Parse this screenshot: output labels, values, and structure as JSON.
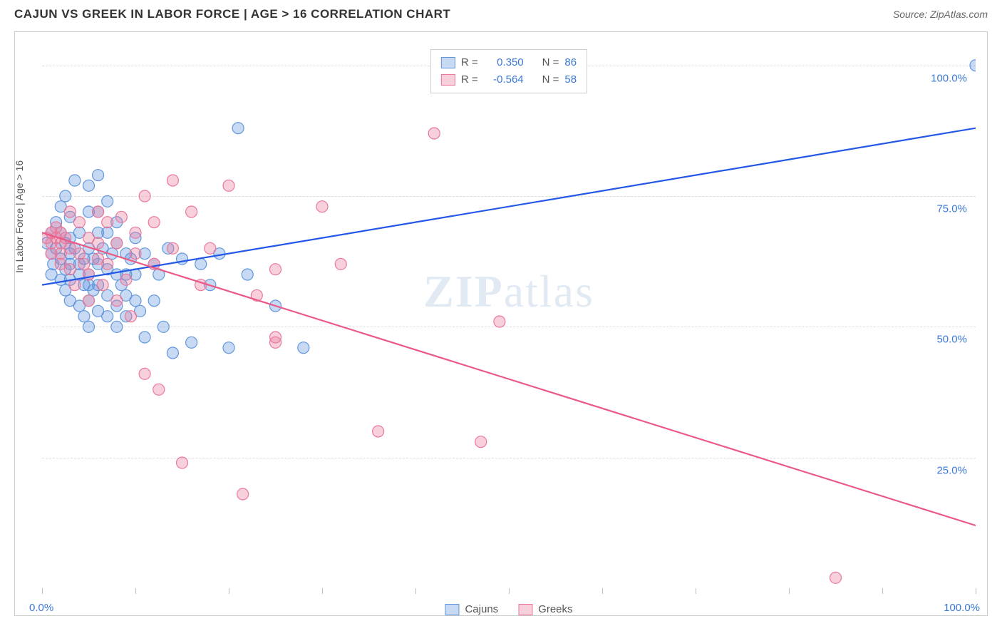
{
  "header": {
    "title": "CAJUN VS GREEK IN LABOR FORCE | AGE > 16 CORRELATION CHART",
    "source": "Source: ZipAtlas.com"
  },
  "chart": {
    "type": "scatter",
    "background_color": "#ffffff",
    "border_color": "#cccccc",
    "grid_color": "#dddddd",
    "grid_style": "dashed",
    "xlim": [
      0,
      100
    ],
    "ylim": [
      0,
      105
    ],
    "xticks": [
      0,
      10,
      20,
      30,
      40,
      50,
      60,
      70,
      80,
      90,
      100
    ],
    "xtick_labels_shown": {
      "0": "0.0%",
      "100": "100.0%"
    },
    "yticks": [
      25,
      50,
      75,
      100
    ],
    "ytick_labels": {
      "25": "25.0%",
      "50": "50.0%",
      "75": "75.0%",
      "100": "100.0%"
    },
    "ylabel": "In Labor Force | Age > 16",
    "ylabel_fontsize": 14,
    "tick_label_fontsize": 15,
    "tick_label_color": "#3b78d8",
    "watermark": "ZIPatlas",
    "marker_radius": 8,
    "marker_opacity": 0.45,
    "marker_stroke_width": 1.2,
    "line_width": 2.2,
    "series": [
      {
        "name": "Cajuns",
        "color_fill": "rgba(96,150,220,0.35)",
        "color_stroke": "#6096dc",
        "trend_color": "#2357e8",
        "R": "0.350",
        "N": "86",
        "trend_line": {
          "x1": 0,
          "y1": 58,
          "x2": 100,
          "y2": 88
        },
        "points": [
          [
            0.5,
            66
          ],
          [
            1,
            68
          ],
          [
            1,
            64
          ],
          [
            1.2,
            62
          ],
          [
            1,
            60
          ],
          [
            1.5,
            70
          ],
          [
            1.5,
            65
          ],
          [
            2,
            63
          ],
          [
            2,
            59
          ],
          [
            2,
            68
          ],
          [
            2,
            73
          ],
          [
            2.5,
            57
          ],
          [
            2.5,
            61
          ],
          [
            2.5,
            66
          ],
          [
            2.5,
            75
          ],
          [
            3,
            55
          ],
          [
            3,
            59
          ],
          [
            3,
            62
          ],
          [
            3,
            64
          ],
          [
            3,
            67
          ],
          [
            3,
            71
          ],
          [
            3.5,
            78
          ],
          [
            3.5,
            65
          ],
          [
            4,
            60
          ],
          [
            4,
            62
          ],
          [
            4,
            54
          ],
          [
            4,
            68
          ],
          [
            4.5,
            58
          ],
          [
            4.5,
            63
          ],
          [
            4.5,
            52
          ],
          [
            5,
            77
          ],
          [
            5,
            72
          ],
          [
            5,
            65
          ],
          [
            5,
            60
          ],
          [
            5,
            58
          ],
          [
            5,
            55
          ],
          [
            5,
            50
          ],
          [
            5.5,
            57
          ],
          [
            5.5,
            63
          ],
          [
            6,
            79
          ],
          [
            6,
            72
          ],
          [
            6,
            68
          ],
          [
            6,
            62
          ],
          [
            6,
            58
          ],
          [
            6,
            53
          ],
          [
            6.5,
            65
          ],
          [
            7,
            61
          ],
          [
            7,
            68
          ],
          [
            7,
            74
          ],
          [
            7,
            56
          ],
          [
            7,
            52
          ],
          [
            7.5,
            64
          ],
          [
            8,
            70
          ],
          [
            8,
            66
          ],
          [
            8,
            60
          ],
          [
            8,
            54
          ],
          [
            8,
            50
          ],
          [
            8.5,
            58
          ],
          [
            9,
            64
          ],
          [
            9,
            60
          ],
          [
            9,
            56
          ],
          [
            9,
            52
          ],
          [
            9.5,
            63
          ],
          [
            10,
            67
          ],
          [
            10,
            60
          ],
          [
            10,
            55
          ],
          [
            10.5,
            53
          ],
          [
            11,
            64
          ],
          [
            11,
            48
          ],
          [
            12,
            62
          ],
          [
            12,
            55
          ],
          [
            12.5,
            60
          ],
          [
            13,
            50
          ],
          [
            13.5,
            65
          ],
          [
            14,
            45
          ],
          [
            15,
            63
          ],
          [
            16,
            47
          ],
          [
            17,
            62
          ],
          [
            18,
            58
          ],
          [
            19,
            64
          ],
          [
            20,
            46
          ],
          [
            21,
            88
          ],
          [
            22,
            60
          ],
          [
            25,
            54
          ],
          [
            28,
            46
          ],
          [
            100,
            100
          ]
        ]
      },
      {
        "name": "Greeks",
        "color_fill": "rgba(235,120,155,0.35)",
        "color_stroke": "#eb789b",
        "trend_color": "#eb5a87",
        "R": "-0.564",
        "N": "58",
        "trend_line": {
          "x1": 0,
          "y1": 68,
          "x2": 100,
          "y2": 12
        },
        "points": [
          [
            0.5,
            67
          ],
          [
            1,
            68
          ],
          [
            1,
            66
          ],
          [
            1,
            64
          ],
          [
            1.5,
            69
          ],
          [
            1.5,
            67
          ],
          [
            2,
            68
          ],
          [
            2,
            66
          ],
          [
            2,
            64
          ],
          [
            2,
            62
          ],
          [
            2.5,
            67
          ],
          [
            3,
            72
          ],
          [
            3,
            65
          ],
          [
            3,
            61
          ],
          [
            3.5,
            58
          ],
          [
            4,
            70
          ],
          [
            4,
            64
          ],
          [
            4.5,
            62
          ],
          [
            5,
            60
          ],
          [
            5,
            67
          ],
          [
            5,
            55
          ],
          [
            6,
            72
          ],
          [
            6,
            66
          ],
          [
            6,
            63
          ],
          [
            6.5,
            58
          ],
          [
            7,
            70
          ],
          [
            7,
            62
          ],
          [
            8,
            55
          ],
          [
            8,
            66
          ],
          [
            8.5,
            71
          ],
          [
            9,
            59
          ],
          [
            9.5,
            52
          ],
          [
            10,
            68
          ],
          [
            10,
            64
          ],
          [
            11,
            41
          ],
          [
            11,
            75
          ],
          [
            12,
            70
          ],
          [
            12,
            62
          ],
          [
            12.5,
            38
          ],
          [
            14,
            65
          ],
          [
            14,
            78
          ],
          [
            15,
            24
          ],
          [
            16,
            72
          ],
          [
            17,
            58
          ],
          [
            18,
            65
          ],
          [
            20,
            77
          ],
          [
            21.5,
            18
          ],
          [
            23,
            56
          ],
          [
            25,
            61
          ],
          [
            25,
            48
          ],
          [
            25,
            47
          ],
          [
            30,
            73
          ],
          [
            32,
            62
          ],
          [
            36,
            30
          ],
          [
            42,
            87
          ],
          [
            47,
            28
          ],
          [
            49,
            51
          ],
          [
            85,
            2
          ]
        ]
      }
    ],
    "legend_top": {
      "border_color": "#cccccc",
      "background": "#ffffff",
      "r_label": "R =",
      "n_label": "N =",
      "value_color": "#3b78d8",
      "text_color": "#555555"
    },
    "legend_bottom": {
      "text_color": "#555555"
    }
  }
}
